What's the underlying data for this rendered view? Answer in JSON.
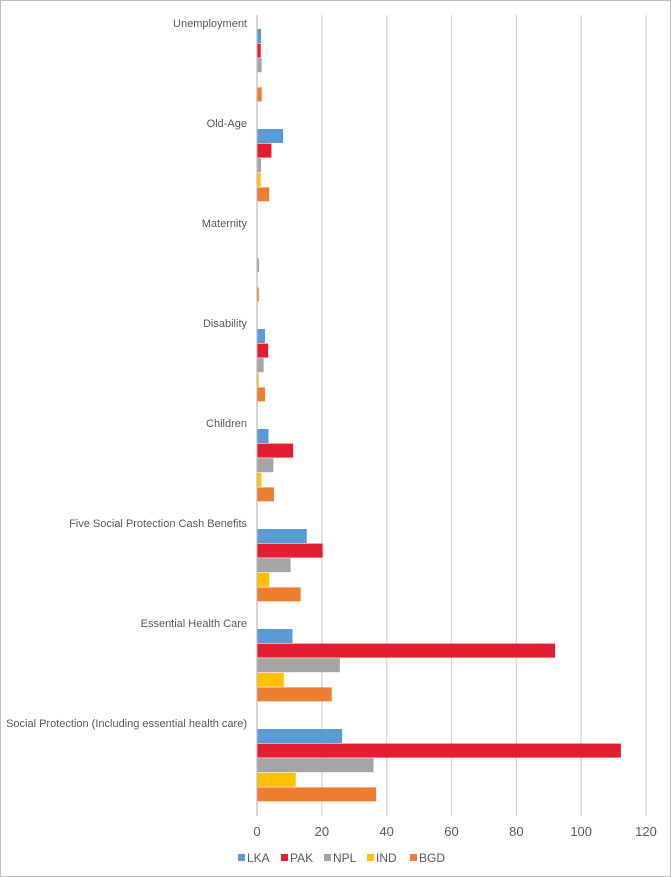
{
  "chart_data": {
    "type": "bar",
    "orientation": "horizontal",
    "title": "",
    "xlabel": "",
    "ylabel": "",
    "categories": [
      "Unemployment",
      "Old-Age",
      "Maternity",
      "Disability",
      "Children",
      "Five Social Protection Cash Benefits",
      "Essential Health Care",
      "Social Protection (Including essential health care)"
    ],
    "series": [
      {
        "name": "LKA",
        "color": "#5b9bd5",
        "values": [
          1.1,
          7.9,
          0,
          2.3,
          3.4,
          15.2,
          10.8,
          26.1
        ]
      },
      {
        "name": "PAK",
        "color": "#e31e30",
        "values": [
          1.0,
          4.3,
          0,
          3.3,
          11.0,
          20.1,
          91.8,
          112.1
        ]
      },
      {
        "name": "NPL",
        "color": "#a5a5a5",
        "values": [
          1.3,
          1.1,
          0.5,
          1.9,
          4.9,
          10.2,
          25.4,
          35.8
        ]
      },
      {
        "name": "IND",
        "color": "#ffc000",
        "values": [
          0,
          1.0,
          0,
          0.4,
          1.2,
          3.6,
          8.1,
          11.8
        ]
      },
      {
        "name": "BGD",
        "color": "#ed7d31",
        "values": [
          1.3,
          3.6,
          0.4,
          2.3,
          5.1,
          13.3,
          22.9,
          36.6
        ]
      }
    ],
    "xlim": [
      0,
      120
    ],
    "xticks": [
      "0",
      "20",
      "40",
      "60",
      "80",
      "100",
      "120"
    ],
    "grid": true,
    "legend_position": "bottom"
  }
}
